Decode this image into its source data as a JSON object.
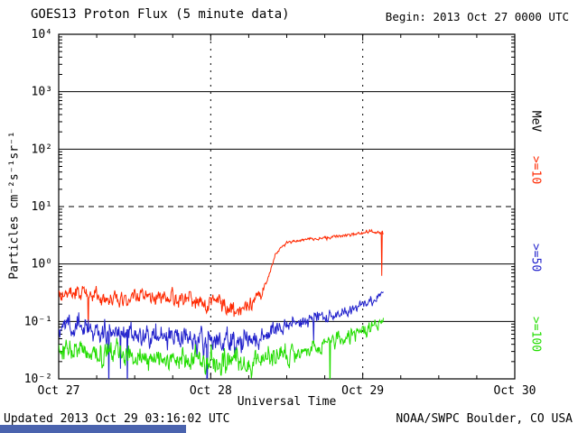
{
  "header": {
    "title": "GOES13 Proton Flux (5 minute data)",
    "begin": "Begin: 2013 Oct 27 0000 UTC"
  },
  "footer": {
    "updated": "Updated 2013 Oct 29 03:16:02 UTC",
    "credit": "NOAA/SWPC Boulder, CO USA"
  },
  "right_axis": {
    "unit": "MeV"
  },
  "misc": {
    "bottom_bar_color": "#4a63ae"
  },
  "chart_data": {
    "type": "line",
    "title": "GOES13 Proton Flux (5 minute data)",
    "xlabel": "Universal Time",
    "ylabel": "Particles cm⁻²s⁻¹sr⁻¹",
    "x_range_hours": [
      0,
      72
    ],
    "y_log_range": [
      -2,
      4
    ],
    "x_ticks": [
      {
        "hour": 0,
        "label": "Oct 27"
      },
      {
        "hour": 24,
        "label": "Oct 28"
      },
      {
        "hour": 48,
        "label": "Oct 29"
      },
      {
        "hour": 72,
        "label": "Oct 30"
      }
    ],
    "y_ticks": [
      {
        "exp": 4,
        "label": "10⁴"
      },
      {
        "exp": 3,
        "label": "10³"
      },
      {
        "exp": 2,
        "label": "10²"
      },
      {
        "exp": 1,
        "label": "10¹"
      },
      {
        "exp": 0,
        "label": "10⁰"
      },
      {
        "exp": -1,
        "label": "10⁻¹"
      },
      {
        "exp": -2,
        "label": "10⁻²"
      }
    ],
    "dashed_y_exp": 1,
    "dashed_x_hours": [
      24,
      48
    ],
    "minor_x_step_hours": 6,
    "sample_minutes": 5,
    "end_hour": 51.3,
    "legend_position": "right",
    "grid": "horizontal solid per decade, alert level 10¹ dashed, day boundaries dashed vertical",
    "series": [
      {
        "name": ">=10",
        "unit": "MeV",
        "color": "#ff2800",
        "seed": 101,
        "keypoints_hour_flux_noise": [
          [
            0,
            0.33,
            0.2
          ],
          [
            4,
            0.3,
            0.2
          ],
          [
            8,
            0.27,
            0.2
          ],
          [
            12,
            0.26,
            0.2
          ],
          [
            16,
            0.26,
            0.2
          ],
          [
            20,
            0.24,
            0.22
          ],
          [
            24,
            0.21,
            0.24
          ],
          [
            27,
            0.17,
            0.28
          ],
          [
            30,
            0.19,
            0.26
          ],
          [
            32,
            0.28,
            0.14
          ],
          [
            33,
            0.55,
            0.07
          ],
          [
            34,
            1.3,
            0.05
          ],
          [
            35,
            1.9,
            0.04
          ],
          [
            36,
            2.3,
            0.04
          ],
          [
            38,
            2.6,
            0.04
          ],
          [
            40,
            2.75,
            0.04
          ],
          [
            42,
            2.85,
            0.04
          ],
          [
            44,
            3.0,
            0.04
          ],
          [
            46,
            3.2,
            0.04
          ],
          [
            48,
            3.45,
            0.05
          ],
          [
            49.5,
            3.7,
            0.05
          ],
          [
            50.5,
            3.6,
            0.06
          ],
          [
            51.3,
            3.5,
            0.06
          ]
        ]
      },
      {
        "name": ">=50",
        "unit": "MeV",
        "color": "#2222cc",
        "seed": 202,
        "keypoints_hour_flux_noise": [
          [
            0,
            0.08,
            0.26
          ],
          [
            4,
            0.075,
            0.26
          ],
          [
            8,
            0.065,
            0.27
          ],
          [
            12,
            0.06,
            0.27
          ],
          [
            16,
            0.055,
            0.28
          ],
          [
            20,
            0.05,
            0.28
          ],
          [
            24,
            0.048,
            0.3
          ],
          [
            28,
            0.045,
            0.3
          ],
          [
            31,
            0.05,
            0.28
          ],
          [
            33,
            0.065,
            0.24
          ],
          [
            35,
            0.085,
            0.2
          ],
          [
            37,
            0.1,
            0.18
          ],
          [
            40,
            0.115,
            0.17
          ],
          [
            43,
            0.13,
            0.16
          ],
          [
            46,
            0.16,
            0.15
          ],
          [
            48.5,
            0.2,
            0.14
          ],
          [
            50,
            0.24,
            0.13
          ],
          [
            51.3,
            0.3,
            0.12
          ]
        ]
      },
      {
        "name": ">=100",
        "unit": "MeV",
        "color": "#22dd00",
        "seed": 303,
        "keypoints_hour_flux_noise": [
          [
            0,
            0.032,
            0.26
          ],
          [
            4,
            0.03,
            0.26
          ],
          [
            8,
            0.027,
            0.28
          ],
          [
            12,
            0.024,
            0.28
          ],
          [
            16,
            0.022,
            0.3
          ],
          [
            20,
            0.021,
            0.3
          ],
          [
            24,
            0.021,
            0.3
          ],
          [
            28,
            0.02,
            0.3
          ],
          [
            32,
            0.022,
            0.28
          ],
          [
            35,
            0.025,
            0.26
          ],
          [
            38,
            0.03,
            0.24
          ],
          [
            41,
            0.037,
            0.22
          ],
          [
            44,
            0.047,
            0.2
          ],
          [
            46,
            0.058,
            0.19
          ],
          [
            48,
            0.07,
            0.18
          ],
          [
            50,
            0.09,
            0.16
          ],
          [
            51.3,
            0.11,
            0.15
          ]
        ]
      }
    ]
  }
}
